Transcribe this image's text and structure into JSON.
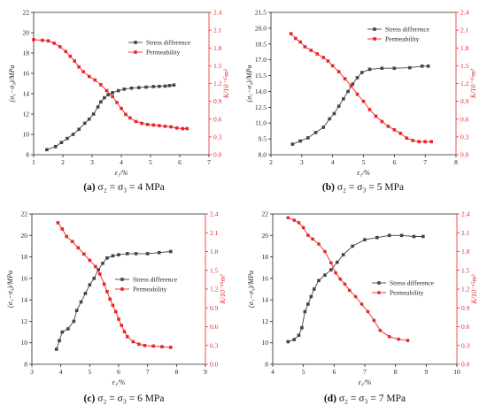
{
  "colors": {
    "stress": "#444444",
    "permeability": "#e8262a",
    "axis": "#222222"
  },
  "legend_labels": {
    "stress": "Stress difference",
    "permeability": "Permeability"
  },
  "axis_labels": {
    "x": "ε₁/%",
    "y_left": "(σ₁−σ₃)/MPa",
    "y_right": "K/10⁻¹⁵m²"
  },
  "chart_data": [
    {
      "type": "line",
      "panel_label": "(a)",
      "caption": "σ₂ = σ₃ = 4 MPa",
      "xlim": [
        1,
        7
      ],
      "xticks": [
        "1",
        "2",
        "3",
        "4",
        "5",
        "6",
        "7"
      ],
      "ylim": [
        8,
        22
      ],
      "yticks": [
        "8",
        "10",
        "12",
        "14",
        "16",
        "18",
        "20",
        "22"
      ],
      "y2lim": [
        0,
        2.4
      ],
      "y2ticks": [
        "0.0",
        "0.3",
        "0.6",
        "0.9",
        "1.2",
        "1.5",
        "1.8",
        "2.1",
        "2.4"
      ],
      "legend_position": "right",
      "series": [
        {
          "name": "Stress difference",
          "axis": "left",
          "marker": "square",
          "x": [
            1.45,
            1.75,
            1.95,
            2.15,
            2.35,
            2.55,
            2.75,
            2.9,
            3.05,
            3.2,
            3.3,
            3.42,
            3.55,
            3.7,
            3.9,
            4.1,
            4.35,
            4.6,
            4.85,
            5.1,
            5.3,
            5.5,
            5.65,
            5.8
          ],
          "values": [
            8.5,
            8.8,
            9.2,
            9.6,
            10,
            10.5,
            11.1,
            11.5,
            12,
            12.7,
            13.2,
            13.6,
            13.9,
            14.1,
            14.3,
            14.45,
            14.55,
            14.6,
            14.65,
            14.7,
            14.72,
            14.75,
            14.8,
            14.85
          ]
        },
        {
          "name": "Permeability",
          "axis": "right",
          "marker": "square",
          "x": [
            1,
            1.3,
            1.5,
            1.7,
            1.9,
            2.1,
            2.25,
            2.4,
            2.55,
            2.7,
            2.9,
            3.1,
            3.3,
            3.5,
            3.7,
            3.85,
            4.0,
            4.15,
            4.3,
            4.5,
            4.7,
            4.9,
            5.1,
            5.3,
            5.5,
            5.7,
            5.9,
            6.1,
            6.25
          ],
          "values": [
            1.94,
            1.93,
            1.92,
            1.88,
            1.82,
            1.74,
            1.66,
            1.58,
            1.48,
            1.4,
            1.32,
            1.26,
            1.18,
            1.08,
            0.98,
            0.88,
            0.78,
            0.68,
            0.62,
            0.56,
            0.53,
            0.51,
            0.5,
            0.49,
            0.48,
            0.47,
            0.45,
            0.44,
            0.44
          ]
        }
      ]
    },
    {
      "type": "line",
      "panel_label": "(b)",
      "caption": "σ₂ = σ₃ = 5 MPa",
      "xlim": [
        2,
        8
      ],
      "xticks": [
        "2",
        "3",
        "4",
        "5",
        "6",
        "7",
        "8"
      ],
      "ylim": [
        8.0,
        21.5
      ],
      "yticks": [
        "8.0",
        "9.5",
        "11.0",
        "12.5",
        "14.0",
        "15.5",
        "17.0",
        "18.5",
        "20.0",
        "21.5"
      ],
      "y2lim": [
        0,
        2.4
      ],
      "y2ticks": [
        "0.0",
        "0.3",
        "0.6",
        "0.9",
        "1.2",
        "1.5",
        "1.8",
        "2.1",
        "2.4"
      ],
      "legend_position": "top-right",
      "series": [
        {
          "name": "Stress difference",
          "axis": "left",
          "marker": "square",
          "x": [
            2.7,
            2.95,
            3.2,
            3.45,
            3.7,
            3.9,
            4.05,
            4.2,
            4.35,
            4.5,
            4.65,
            4.8,
            4.95,
            5.2,
            5.6,
            6.0,
            6.5,
            6.9,
            7.1
          ],
          "values": [
            9.0,
            9.3,
            9.6,
            10.1,
            10.6,
            11.4,
            11.9,
            12.6,
            13.3,
            14.0,
            14.7,
            15.3,
            15.8,
            16.1,
            16.2,
            16.2,
            16.25,
            16.4,
            16.4
          ]
        },
        {
          "name": "Permeability",
          "axis": "right",
          "marker": "square",
          "x": [
            2.65,
            2.8,
            2.95,
            3.1,
            3.3,
            3.5,
            3.7,
            3.85,
            4.0,
            4.2,
            4.4,
            4.6,
            4.8,
            5.0,
            5.2,
            5.4,
            5.6,
            5.8,
            6.0,
            6.2,
            6.4,
            6.6,
            6.8,
            7.0,
            7.2
          ],
          "values": [
            2.04,
            1.96,
            1.9,
            1.82,
            1.76,
            1.7,
            1.64,
            1.58,
            1.5,
            1.4,
            1.28,
            1.16,
            1.02,
            0.9,
            0.76,
            0.65,
            0.56,
            0.48,
            0.42,
            0.36,
            0.28,
            0.24,
            0.22,
            0.22,
            0.22
          ]
        }
      ]
    },
    {
      "type": "line",
      "panel_label": "(c)",
      "caption": "σ₂ = σ₃ = 6 MPa",
      "xlim": [
        3,
        9
      ],
      "xticks": [
        "3",
        "4",
        "5",
        "6",
        "7",
        "8",
        "9"
      ],
      "ylim": [
        8,
        22
      ],
      "yticks": [
        "8",
        "10",
        "12",
        "14",
        "16",
        "18",
        "20",
        "22"
      ],
      "y2lim": [
        0,
        2.4
      ],
      "y2ticks": [
        "0.0",
        "0.3",
        "0.6",
        "0.9",
        "1.2",
        "1.5",
        "1.8",
        "2.1",
        "2.4"
      ],
      "legend_position": "right",
      "series": [
        {
          "name": "Stress difference",
          "axis": "left",
          "marker": "square",
          "x": [
            3.85,
            3.95,
            4.05,
            4.25,
            4.45,
            4.55,
            4.7,
            4.85,
            5.0,
            5.15,
            5.3,
            5.45,
            5.6,
            5.8,
            6.0,
            6.3,
            6.6,
            7.0,
            7.4,
            7.8
          ],
          "values": [
            9.4,
            10.2,
            11.0,
            11.3,
            12.0,
            13.0,
            13.8,
            14.6,
            15.4,
            16.0,
            16.8,
            17.4,
            17.9,
            18.1,
            18.2,
            18.3,
            18.3,
            18.3,
            18.4,
            18.5
          ]
        },
        {
          "name": "Permeability",
          "axis": "right",
          "marker": "square",
          "x": [
            3.9,
            4.05,
            4.2,
            4.4,
            4.6,
            4.8,
            5.0,
            5.2,
            5.35,
            5.5,
            5.6,
            5.7,
            5.8,
            5.9,
            6.0,
            6.1,
            6.2,
            6.3,
            6.5,
            6.7,
            6.9,
            7.2,
            7.5,
            7.8
          ],
          "values": [
            2.26,
            2.16,
            2.04,
            1.96,
            1.86,
            1.76,
            1.66,
            1.56,
            1.44,
            1.28,
            1.16,
            1.04,
            0.94,
            0.84,
            0.72,
            0.62,
            0.52,
            0.44,
            0.36,
            0.32,
            0.3,
            0.29,
            0.28,
            0.27
          ]
        }
      ]
    },
    {
      "type": "line",
      "panel_label": "(d)",
      "caption": "σ₂ = σ₃ = 7 MPa",
      "xlim": [
        4,
        10
      ],
      "xticks": [
        "4",
        "5",
        "6",
        "7",
        "8",
        "9",
        "10"
      ],
      "ylim": [
        8,
        22
      ],
      "yticks": [
        "8",
        "10",
        "12",
        "14",
        "16",
        "18",
        "20",
        "22"
      ],
      "y2lim": [
        0,
        2.4
      ],
      "y2ticks": [
        "0.0",
        "0.3",
        "0.6",
        "0.9",
        "1.2",
        "1.5",
        "1.8",
        "2.1",
        "2.4"
      ],
      "legend_position": "right",
      "series": [
        {
          "name": "Stress difference",
          "axis": "left",
          "marker": "square",
          "x": [
            4.5,
            4.7,
            4.85,
            4.95,
            5.05,
            5.15,
            5.25,
            5.35,
            5.5,
            5.7,
            5.9,
            6.1,
            6.3,
            6.6,
            7.0,
            7.4,
            7.8,
            8.2,
            8.6,
            8.9
          ],
          "values": [
            10.1,
            10.3,
            10.7,
            11.4,
            12.9,
            13.6,
            14.3,
            15.0,
            15.8,
            16.3,
            16.8,
            17.5,
            18.2,
            19.0,
            19.6,
            19.8,
            20.0,
            20.0,
            19.9,
            19.9
          ]
        },
        {
          "name": "Permeability",
          "axis": "right",
          "marker": "circle",
          "x": [
            4.5,
            4.7,
            4.85,
            5.0,
            5.15,
            5.3,
            5.5,
            5.7,
            5.9,
            6.05,
            6.2,
            6.35,
            6.5,
            6.7,
            6.9,
            7.1,
            7.3,
            7.5,
            7.8,
            8.1,
            8.4
          ],
          "values": [
            2.34,
            2.3,
            2.26,
            2.18,
            2.06,
            2.0,
            1.92,
            1.8,
            1.62,
            1.46,
            1.36,
            1.28,
            1.18,
            1.08,
            0.96,
            0.84,
            0.7,
            0.54,
            0.44,
            0.4,
            0.38
          ]
        }
      ]
    }
  ]
}
